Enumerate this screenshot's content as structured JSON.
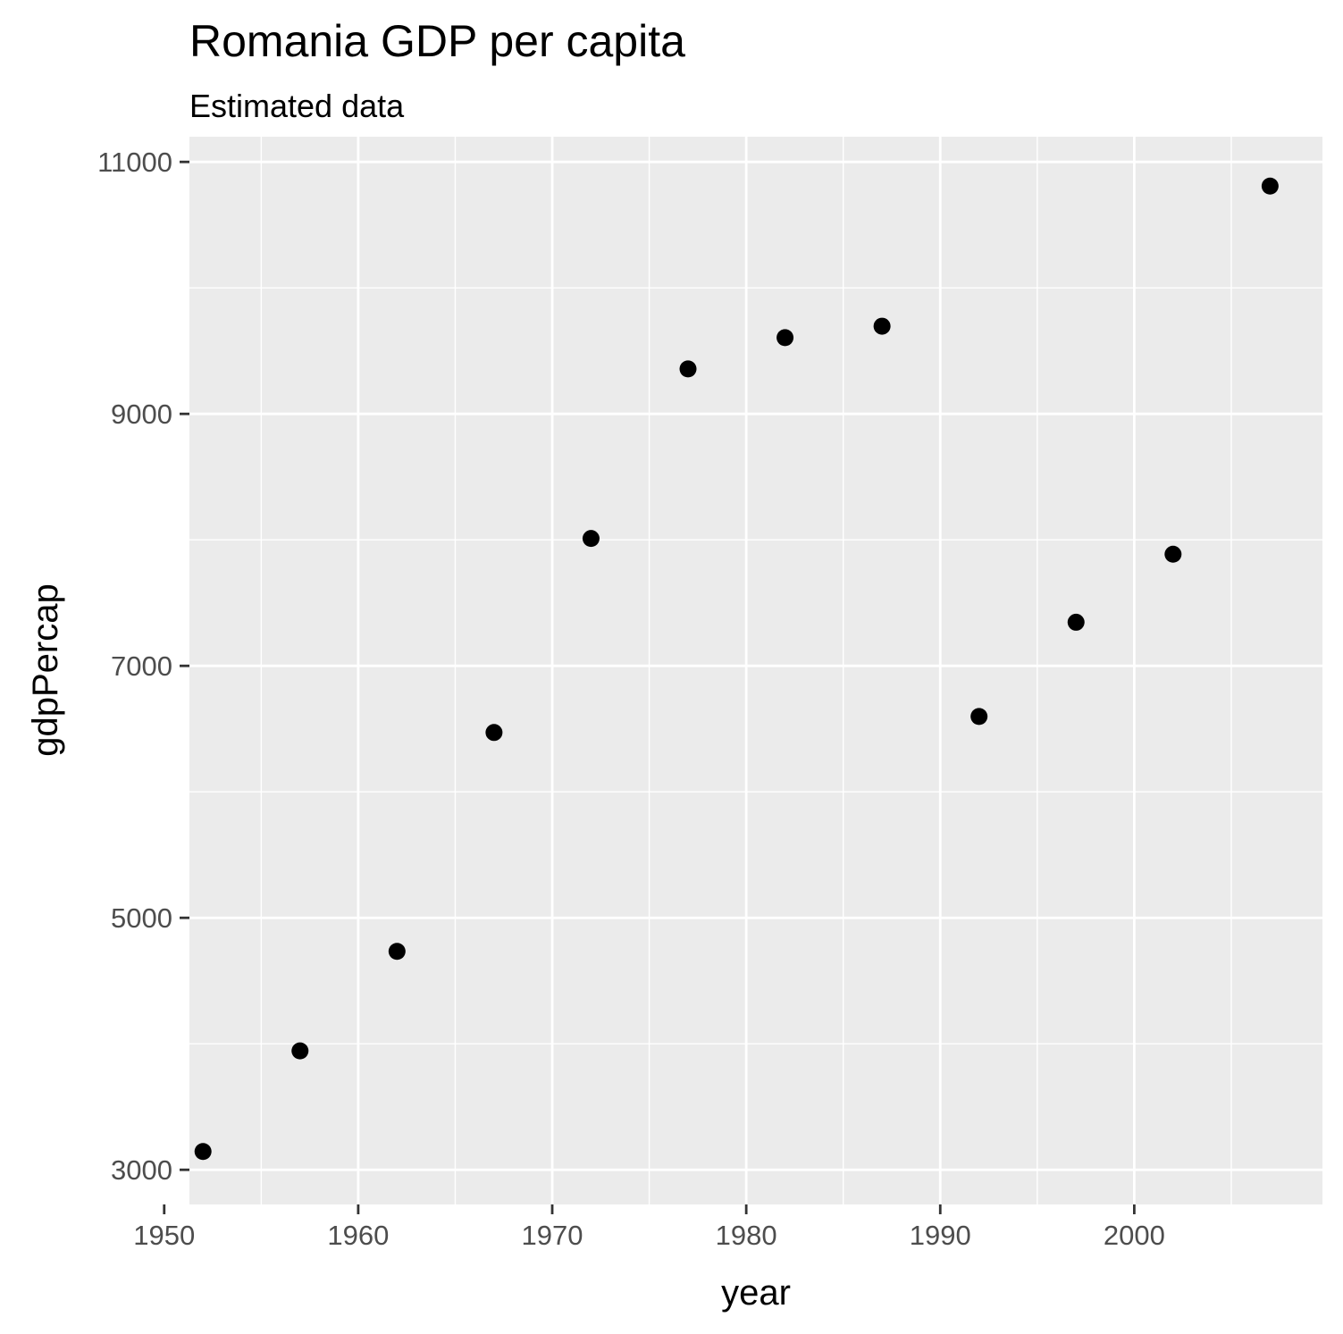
{
  "chart_data": {
    "type": "scatter",
    "title": "Romania GDP per capita",
    "subtitle": "Estimated data",
    "xlabel": "year",
    "ylabel": "gdpPercap",
    "xlim": [
      1951.3,
      2009.7
    ],
    "ylim": [
      2725,
      11200
    ],
    "x_ticks": [
      1950,
      1960,
      1970,
      1980,
      1990,
      2000
    ],
    "x_minor_ticks": [
      1955,
      1965,
      1975,
      1985,
      1995,
      2005
    ],
    "y_ticks": [
      3000,
      5000,
      7000,
      9000,
      11000
    ],
    "y_minor_ticks": [
      4000,
      6000,
      8000,
      10000
    ],
    "grid": true,
    "legend": "none",
    "colors": {
      "panel_background": "#ebebeb",
      "grid": "#ffffff",
      "point": "#000000",
      "tick_label": "#4d4d4d",
      "tick_mark": "#333333"
    },
    "series": [
      {
        "points": [
          {
            "x": 1952,
            "y": 3145
          },
          {
            "x": 1957,
            "y": 3944
          },
          {
            "x": 1962,
            "y": 4734
          },
          {
            "x": 1967,
            "y": 6471
          },
          {
            "x": 1972,
            "y": 8011
          },
          {
            "x": 1977,
            "y": 9357
          },
          {
            "x": 1982,
            "y": 9605
          },
          {
            "x": 1987,
            "y": 9696
          },
          {
            "x": 1992,
            "y": 6598
          },
          {
            "x": 1997,
            "y": 7346
          },
          {
            "x": 2002,
            "y": 7886
          },
          {
            "x": 2007,
            "y": 10808
          }
        ]
      }
    ]
  }
}
